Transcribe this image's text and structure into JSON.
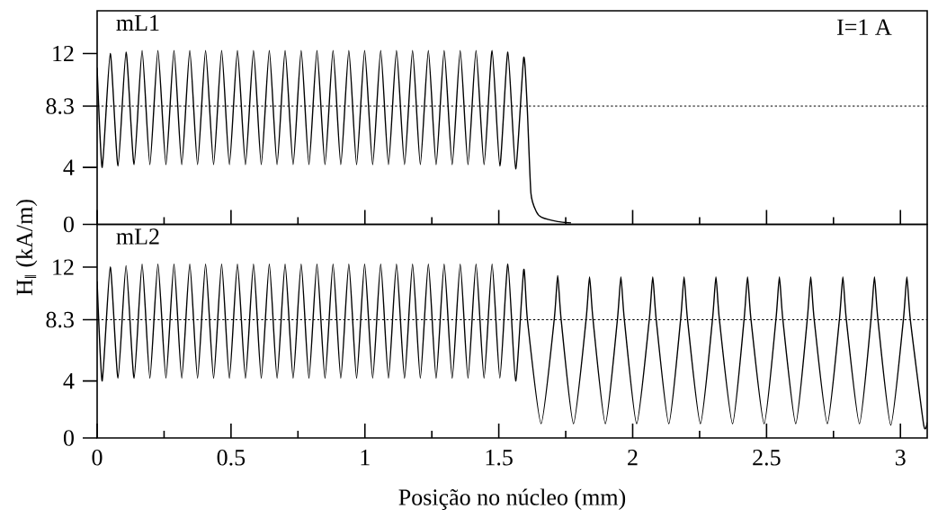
{
  "chart_data": [
    {
      "type": "line",
      "ylabel": "H$_{‖}$ (kA/m)",
      "annotations": [
        "mL1",
        "I=1 A"
      ],
      "x": [
        0,
        0.019,
        0.049,
        0.078,
        0.108,
        0.138,
        0.168,
        0.197,
        0.227,
        0.257,
        0.287,
        0.316,
        0.346,
        0.375,
        0.405,
        0.435,
        0.465,
        0.494,
        0.524,
        0.554,
        0.584,
        0.613,
        0.643,
        0.672,
        0.702,
        0.732,
        0.762,
        0.791,
        0.821,
        0.851,
        0.881,
        0.91,
        0.94,
        0.969,
        0.999,
        1.029,
        1.059,
        1.088,
        1.118,
        1.148,
        1.178,
        1.207,
        1.237,
        1.266,
        1.296,
        1.326,
        1.356,
        1.385,
        1.415,
        1.445,
        1.475,
        1.504,
        1.534,
        1.563,
        1.593,
        1.606,
        1.62,
        1.64,
        1.66,
        1.72,
        1.77
      ],
      "series": [
        {
          "color": "#000000",
          "values": [
            11,
            4.0,
            12.0,
            4.1,
            12.1,
            4.2,
            12.2,
            4.2,
            12.2,
            4.2,
            12.2,
            4.2,
            12.2,
            4.2,
            12.2,
            4.2,
            12.2,
            4.2,
            12.2,
            4.2,
            12.2,
            4.2,
            12.2,
            4.2,
            12.2,
            4.2,
            12.2,
            4.2,
            12.2,
            4.2,
            12.2,
            4.2,
            12.2,
            4.2,
            12.2,
            4.2,
            12.2,
            4.2,
            12.2,
            4.2,
            12.2,
            4.2,
            12.2,
            4.2,
            12.2,
            4.2,
            12.2,
            4.2,
            12.2,
            4.2,
            12.2,
            4.1,
            12.1,
            3.9,
            11.7,
            8.3,
            2.2,
            0.9,
            0.5,
            0.2,
            0.1
          ]
        }
      ],
      "xlim": [
        0,
        3.1
      ],
      "ylim": [
        0,
        15
      ],
      "xticks": [
        0,
        {
          "value": 0.25,
          "label": null
        },
        0.5,
        {
          "value": 0.75,
          "label": null
        },
        1,
        {
          "value": 1.25,
          "label": null
        },
        1.5,
        {
          "value": 1.75,
          "label": null
        },
        2,
        {
          "value": 2.25,
          "label": null
        },
        2.5,
        {
          "value": 2.75,
          "label": null
        },
        3
      ],
      "yticks": [
        0,
        4,
        8.3,
        12
      ],
      "ref_lines": [
        {
          "axis": "y",
          "value": 8.3,
          "color": "#000000",
          "line_style": "dotted"
        }
      ],
      "tick_labels": "y"
    },
    {
      "type": "line",
      "xlabel": "Posição no núcleo (mm)",
      "annotations": [
        "mL2"
      ],
      "x": [
        0,
        0.019,
        0.049,
        0.078,
        0.108,
        0.138,
        0.168,
        0.197,
        0.227,
        0.257,
        0.287,
        0.316,
        0.346,
        0.375,
        0.405,
        0.435,
        0.465,
        0.494,
        0.524,
        0.554,
        0.584,
        0.613,
        0.643,
        0.672,
        0.702,
        0.732,
        0.762,
        0.791,
        0.821,
        0.851,
        0.881,
        0.91,
        0.94,
        0.969,
        0.999,
        1.029,
        1.059,
        1.088,
        1.118,
        1.148,
        1.178,
        1.207,
        1.237,
        1.266,
        1.296,
        1.326,
        1.356,
        1.385,
        1.415,
        1.445,
        1.475,
        1.504,
        1.534,
        1.563,
        1.593,
        1.607,
        1.658,
        1.707,
        1.72,
        1.733,
        1.779,
        1.826,
        1.839,
        1.852,
        1.898,
        1.943,
        1.956,
        1.969,
        2.015,
        2.062,
        2.075,
        2.088,
        2.135,
        2.179,
        2.192,
        2.205,
        2.253,
        2.298,
        2.311,
        2.324,
        2.373,
        2.416,
        2.429,
        2.442,
        2.491,
        2.535,
        2.548,
        2.561,
        2.609,
        2.652,
        2.665,
        2.678,
        2.727,
        2.772,
        2.785,
        2.798,
        2.847,
        2.89,
        2.903,
        2.916,
        2.964,
        3.011,
        3.024,
        3.037,
        3.087,
        3.1
      ],
      "series": [
        {
          "color": "#000000",
          "values": [
            11,
            4.0,
            12.0,
            4.2,
            12.1,
            4.2,
            12.2,
            4.2,
            12.2,
            4.2,
            12.2,
            4.2,
            12.2,
            4.2,
            12.2,
            4.2,
            12.2,
            4.2,
            12.2,
            4.2,
            12.2,
            4.2,
            12.2,
            4.2,
            12.2,
            4.2,
            12.2,
            4.2,
            12.2,
            4.2,
            12.2,
            4.2,
            12.2,
            4.2,
            12.2,
            4.2,
            12.2,
            4.2,
            12.2,
            4.2,
            12.2,
            4.2,
            12.2,
            4.2,
            12.2,
            4.2,
            12.2,
            4.2,
            12.2,
            4.2,
            12.2,
            4.2,
            12.2,
            4.0,
            11.8,
            8.3,
            1.0,
            8.3,
            11.4,
            8.3,
            1.0,
            8.3,
            11.3,
            8.3,
            1.0,
            8.3,
            11.3,
            8.3,
            1.0,
            8.3,
            11.3,
            8.3,
            1.0,
            8.3,
            11.3,
            8.3,
            1.0,
            8.3,
            11.3,
            8.3,
            1.0,
            8.3,
            11.3,
            8.3,
            1.0,
            8.3,
            11.3,
            8.3,
            1.0,
            8.3,
            11.3,
            8.3,
            1.0,
            8.3,
            11.3,
            8.3,
            1.0,
            8.3,
            11.3,
            8.3,
            0.9,
            8.3,
            11.3,
            8.3,
            0.9,
            1.1
          ]
        }
      ],
      "xlim": [
        0,
        3.1
      ],
      "ylim": [
        0,
        15
      ],
      "xticks": [
        0,
        {
          "value": 0.25,
          "label": null
        },
        0.5,
        {
          "value": 0.75,
          "label": null
        },
        1,
        {
          "value": 1.25,
          "label": null
        },
        1.5,
        {
          "value": 1.75,
          "label": null
        },
        2,
        {
          "value": 2.25,
          "label": null
        },
        2.5,
        {
          "value": 2.75,
          "label": null
        },
        3
      ],
      "yticks": [
        0,
        4,
        8.3,
        12
      ],
      "ref_lines": [
        {
          "axis": "y",
          "value": 8.3,
          "color": "#000000",
          "line_style": "dotted"
        }
      ]
    }
  ]
}
